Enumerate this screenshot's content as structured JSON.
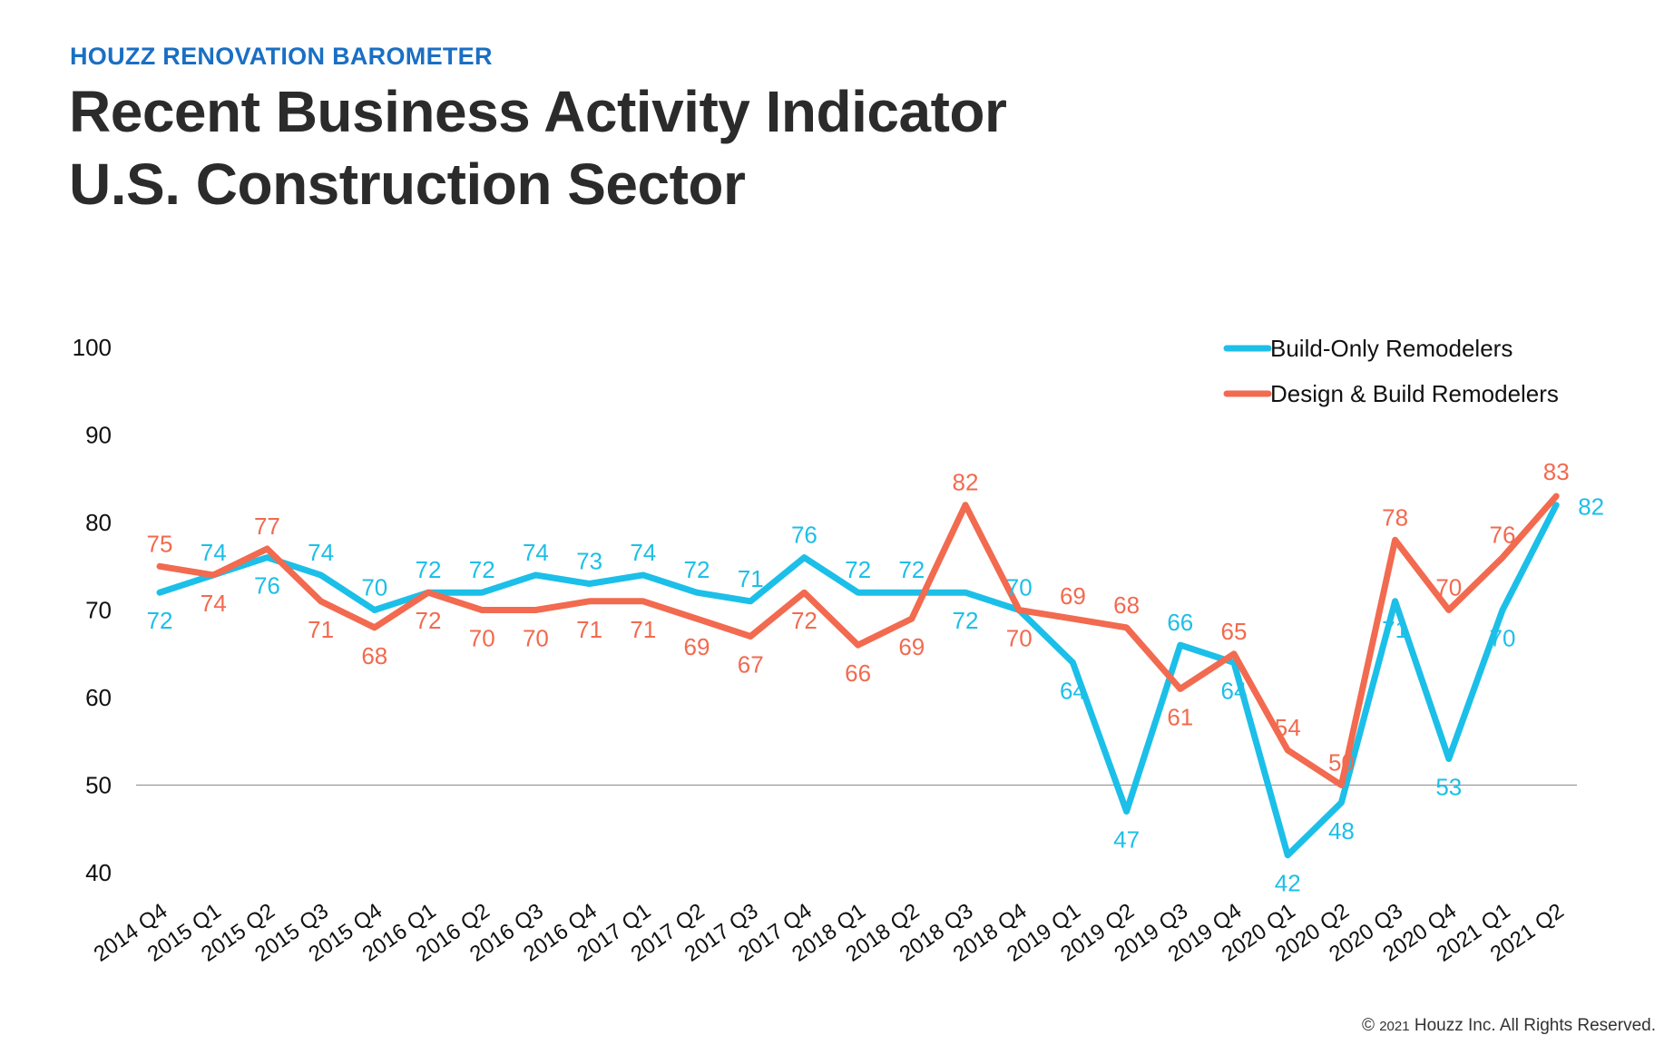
{
  "header": {
    "kicker": "HOUZZ RENOVATION BAROMETER",
    "title_line1": "Recent Business Activity Indicator",
    "title_line2": "U.S. Construction Sector"
  },
  "footer": {
    "copyright_symbol": "©",
    "year": "2021",
    "text": "Houzz Inc. All Rights Reserved."
  },
  "colors": {
    "kicker": "#1a6fc4",
    "title": "#2b2b2b",
    "build_only": "#1cbfe8",
    "design_build": "#f26a4f",
    "reference_line": "#999999"
  },
  "chart_data": {
    "type": "line",
    "title": "Recent Business Activity Indicator U.S. Construction Sector",
    "xlabel": "",
    "ylabel": "",
    "ylim": [
      40,
      100
    ],
    "yticks": [
      100,
      90,
      80,
      70,
      60,
      50,
      40
    ],
    "reference_line": 50,
    "grid": false,
    "legend_position": "top-right",
    "categories": [
      "2014 Q4",
      "2015 Q1",
      "2015 Q2",
      "2015 Q3",
      "2015 Q4",
      "2016 Q1",
      "2016 Q2",
      "2016 Q3",
      "2016 Q4",
      "2017 Q1",
      "2017 Q2",
      "2017 Q3",
      "2017 Q4",
      "2018 Q1",
      "2018 Q2",
      "2018 Q3",
      "2018 Q4",
      "2019 Q1",
      "2019 Q2",
      "2019 Q3",
      "2019 Q4",
      "2020 Q1",
      "2020 Q2",
      "2020 Q3",
      "2020 Q4",
      "2021 Q1",
      "2021 Q2"
    ],
    "series": [
      {
        "name": "Build-Only Remodelers",
        "color": "#1cbfe8",
        "values": [
          72,
          74,
          76,
          74,
          70,
          72,
          72,
          74,
          73,
          74,
          72,
          71,
          76,
          72,
          72,
          72,
          70,
          64,
          47,
          66,
          64,
          42,
          48,
          71,
          53,
          70,
          82
        ]
      },
      {
        "name": "Design & Build Remodelers",
        "color": "#f26a4f",
        "values": [
          75,
          74,
          77,
          71,
          68,
          72,
          70,
          70,
          71,
          71,
          69,
          67,
          72,
          66,
          69,
          82,
          70,
          69,
          68,
          61,
          65,
          54,
          50,
          78,
          70,
          76,
          83
        ]
      }
    ]
  }
}
